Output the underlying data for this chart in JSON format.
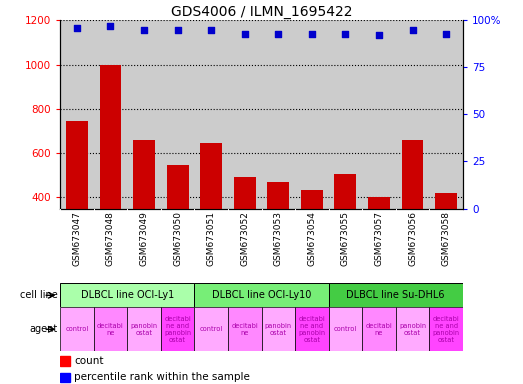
{
  "title": "GDS4006 / ILMN_1695422",
  "samples": [
    "GSM673047",
    "GSM673048",
    "GSM673049",
    "GSM673050",
    "GSM673051",
    "GSM673052",
    "GSM673053",
    "GSM673054",
    "GSM673055",
    "GSM673057",
    "GSM673056",
    "GSM673058"
  ],
  "counts": [
    745,
    1000,
    660,
    548,
    648,
    492,
    468,
    432,
    508,
    400,
    660,
    418
  ],
  "percentile_ranks": [
    96,
    97,
    95,
    95,
    95,
    93,
    93,
    93,
    93,
    92,
    95,
    93
  ],
  "ylim_left": [
    350,
    1200
  ],
  "ylim_right": [
    0,
    100
  ],
  "yticks_left": [
    400,
    600,
    800,
    1000,
    1200
  ],
  "yticks_right": [
    0,
    25,
    50,
    75,
    100
  ],
  "cell_lines": [
    {
      "label": "DLBCL line OCI-Ly1",
      "start": 0,
      "end": 4,
      "color": "#aaffaa"
    },
    {
      "label": "DLBCL line OCI-Ly10",
      "start": 4,
      "end": 8,
      "color": "#77ee77"
    },
    {
      "label": "DLBCL line Su-DHL6",
      "start": 8,
      "end": 12,
      "color": "#44cc44"
    }
  ],
  "agent_texts": [
    "control",
    "decitabi\nne",
    "panobin\nostat",
    "decitabi\nne and\npanobin\nostat",
    "control",
    "decitabi\nne",
    "panobin\nostat",
    "decitabi\nne and\npanobin\nostat",
    "control",
    "decitabi\nne",
    "panobin\nostat",
    "decitabi\nne and\npanobin\nostat"
  ],
  "agent_colors": [
    "#ffaaff",
    "#ff88ff",
    "#ffaaff",
    "#ff44ff",
    "#ffaaff",
    "#ff88ff",
    "#ffaaff",
    "#ff44ff",
    "#ffaaff",
    "#ff88ff",
    "#ffaaff",
    "#ff44ff"
  ],
  "bar_color": "#cc0000",
  "dot_color": "#0000cc",
  "plot_bg_color": "#cccccc",
  "fig_bg_color": "#ffffff"
}
